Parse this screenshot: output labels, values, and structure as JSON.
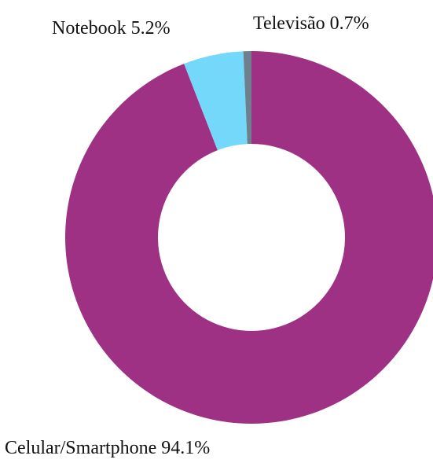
{
  "chart_data": {
    "type": "pie",
    "donut": true,
    "slices": [
      {
        "label": "Celular/Smartphone",
        "value": 94.1,
        "value_label": "94.1%",
        "color": "#9e3184"
      },
      {
        "label": "Notebook",
        "value": 5.2,
        "value_label": "5.2%",
        "color": "#74d8fb"
      },
      {
        "label": "Televisão",
        "value": 0.7,
        "value_label": "0.7%",
        "color": "#6e7f8e"
      }
    ],
    "legend": "none"
  }
}
